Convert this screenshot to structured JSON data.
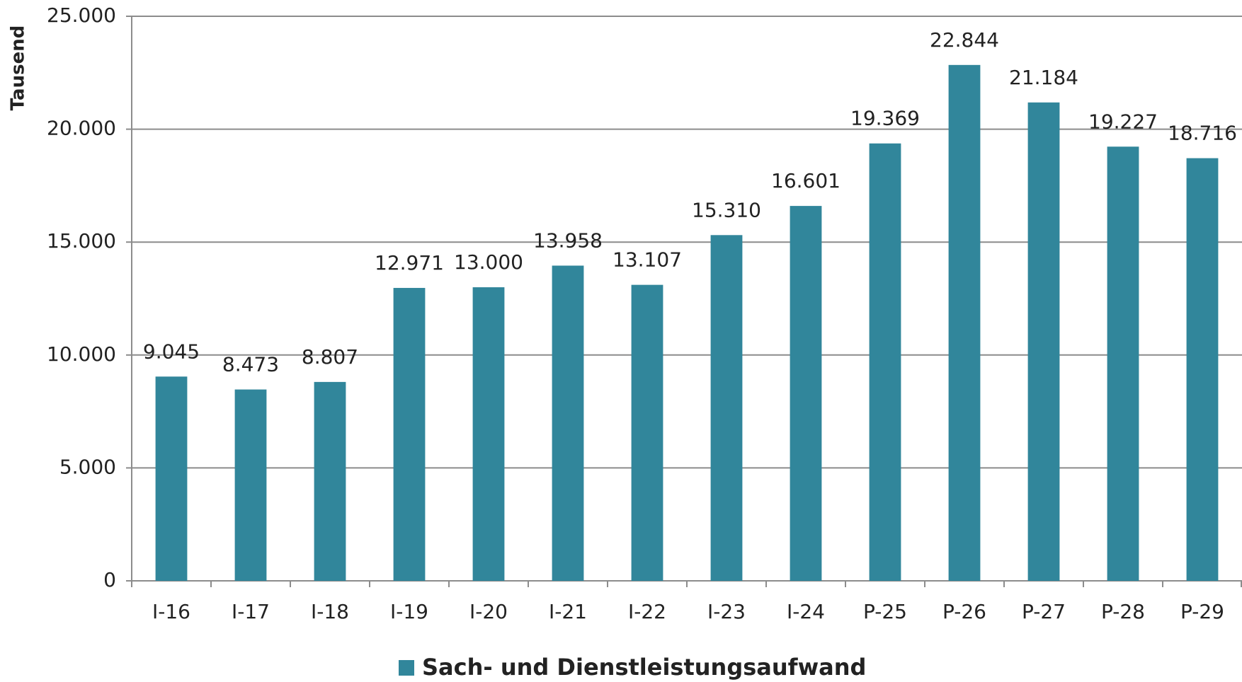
{
  "chart_data": {
    "type": "bar",
    "y_axis_label": "Tausend",
    "categories": [
      "I-16",
      "I-17",
      "I-18",
      "I-19",
      "I-20",
      "I-21",
      "I-22",
      "I-23",
      "I-24",
      "P-25",
      "P-26",
      "P-27",
      "P-28",
      "P-29"
    ],
    "series": [
      {
        "name": "Sach- und Dienstleistungsaufwand",
        "color": "#31869b",
        "values": [
          9045,
          8473,
          8807,
          12971,
          13000,
          13958,
          13107,
          15310,
          16601,
          19369,
          22844,
          21184,
          19227,
          18716
        ],
        "value_labels": [
          "9.045",
          "8.473",
          "8.807",
          "12.971",
          "13.000",
          "13.958",
          "13.107",
          "15.310",
          "16.601",
          "19.369",
          "22.844",
          "21.184",
          "19.227",
          "18.716"
        ]
      }
    ],
    "ylim": [
      0,
      25000
    ],
    "yticks": [
      0,
      {
        "value": 5000,
        "label": "5.000"
      },
      {
        "value": 10000,
        "label": "10.000"
      },
      {
        "value": 15000,
        "label": "15.000"
      },
      {
        "value": 20000,
        "label": "20.000"
      },
      {
        "value": 25000,
        "label": "25.000"
      }
    ],
    "grid": true,
    "legend": "bottom"
  }
}
